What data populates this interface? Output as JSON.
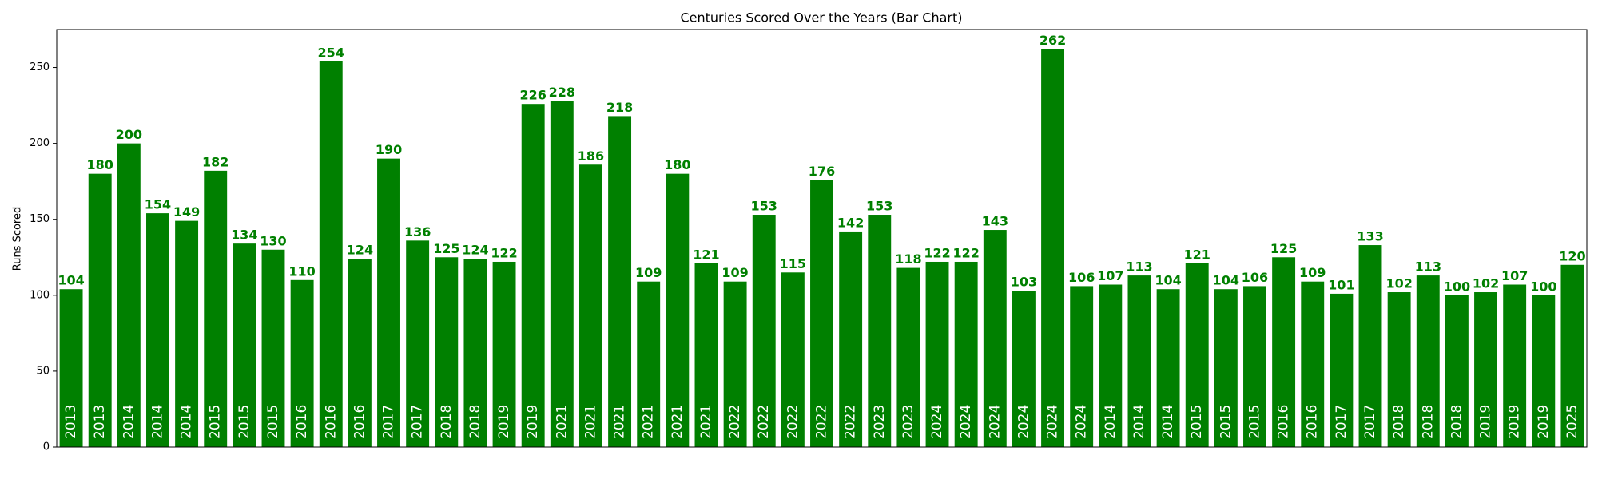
{
  "chart_data": {
    "type": "bar",
    "title": "Centuries Scored Over the Years (Bar Chart)",
    "y_label": "Runs Scored",
    "categories": [
      "2013",
      "2013",
      "2014",
      "2014",
      "2014",
      "2015",
      "2015",
      "2015",
      "2016",
      "2016",
      "2016",
      "2017",
      "2017",
      "2018",
      "2018",
      "2019",
      "2019",
      "2021",
      "2021",
      "2021",
      "2021",
      "2021",
      "2021",
      "2022",
      "2022",
      "2022",
      "2022",
      "2022",
      "2023",
      "2023",
      "2024",
      "2024",
      "2024",
      "2024",
      "2024",
      "2024",
      "2014",
      "2014",
      "2014",
      "2015",
      "2015",
      "2015",
      "2016",
      "2016",
      "2017",
      "2017",
      "2018",
      "2018",
      "2018",
      "2019",
      "2019",
      "2019",
      "2025"
    ],
    "values": [
      104,
      180,
      200,
      154,
      149,
      182,
      134,
      130,
      110,
      254,
      124,
      190,
      136,
      125,
      124,
      122,
      226,
      228,
      186,
      218,
      109,
      180,
      121,
      109,
      153,
      115,
      176,
      142,
      153,
      118,
      122,
      122,
      143,
      103,
      262,
      106,
      107,
      113,
      104,
      121,
      104,
      106,
      125,
      109,
      101,
      133,
      102,
      113,
      100,
      102,
      107,
      100,
      120
    ],
    "color": "#008000",
    "label_color": "#008000",
    "category_label_color": "#ffffff",
    "ylim": [
      0,
      275
    ],
    "yticks": [
      0,
      50,
      100,
      150,
      200,
      250
    ],
    "grid": false
  }
}
